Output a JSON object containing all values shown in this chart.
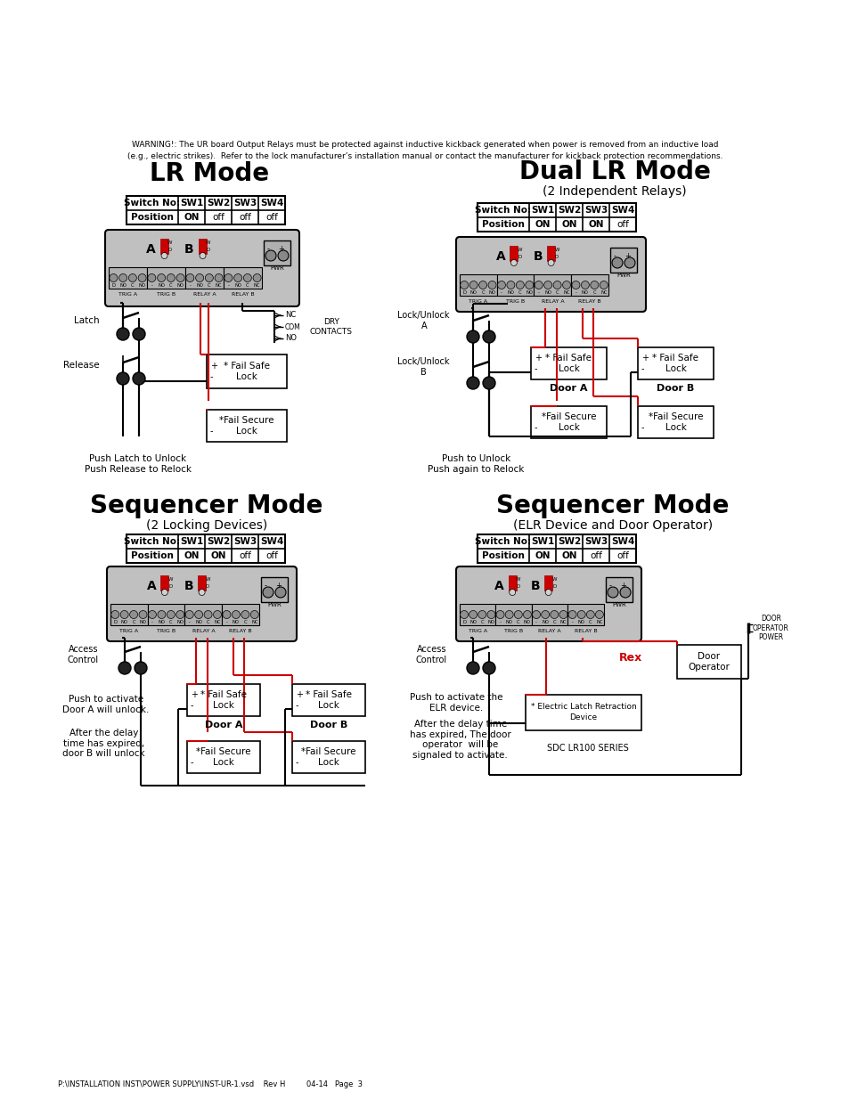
{
  "page_bg": "#ffffff",
  "warning_line1": "WARNING!: The UR board Output Relays must be protected against inductive kickback generated when power is removed from an inductive load",
  "warning_line2": "(e.g., electric strikes).  Refer to the lock manufacturer’s installation manual or contact the manufacturer for kickback protection recommendations.",
  "footer_text": "P:\\INSTALLATION INST\\POWER SUPPLY\\INST-UR-1.vsd    Rev H         04-14   Page  3",
  "lr_title": "LR Mode",
  "lr_sw_headers": [
    "Switch No:",
    "SW1",
    "SW2",
    "SW3",
    "SW4"
  ],
  "lr_sw_positions": [
    "Position",
    "ON",
    "off",
    "off",
    "off"
  ],
  "lr_latch": "Latch",
  "lr_release": "Release",
  "lr_dry": [
    "NC",
    "COM",
    "NO"
  ],
  "lr_dry_label": "DRY\nCONTACTS",
  "lr_fs_lock": "* Fail Safe\n    Lock",
  "lr_fsec_lock": "*Fail Secure\n    Lock",
  "lr_bottom": "Push Latch to Unlock\nPush Release to Relock",
  "dual_title": "Dual LR Mode",
  "dual_subtitle": "(2 Independent Relays)",
  "dual_sw_headers": [
    "Switch No:",
    "SW1",
    "SW2",
    "SW3",
    "SW4"
  ],
  "dual_sw_positions": [
    "Position",
    "ON",
    "ON",
    "ON",
    "off"
  ],
  "dual_lu_a": "Lock/Unlock\nA",
  "dual_lu_b": "Lock/Unlock\nB",
  "dual_door_a": "Door A",
  "dual_door_b": "Door B",
  "dual_fs_a": "* Fail Safe\n    Lock",
  "dual_fsec_a": "*Fail Secure\n    Lock",
  "dual_fs_b": "* Fail Safe\n    Lock",
  "dual_fsec_b": "*Fail Secure\n    Lock",
  "dual_bottom": "Push to Unlock\nPush again to Relock",
  "seq1_title": "Sequencer Mode",
  "seq1_subtitle": "(2 Locking Devices)",
  "seq1_sw_headers": [
    "Switch No:",
    "SW1",
    "SW2",
    "SW3",
    "SW4"
  ],
  "seq1_sw_positions": [
    "Position",
    "ON",
    "ON",
    "off",
    "off"
  ],
  "seq1_ac": "Access\nControl",
  "seq1_door_a": "Door A",
  "seq1_door_b": "Door B",
  "seq1_fs_a": "* Fail Safe\n    Lock",
  "seq1_fsec_a": "*Fail Secure\n    Lock",
  "seq1_fs_b": "* Fail Safe\n    Lock",
  "seq1_fsec_b": "*Fail Secure\n    Lock",
  "seq1_bottom1": "Push to activate\nDoor A will unlock.",
  "seq1_bottom2": "After the delay\ntime has expired,\ndoor B will unlock",
  "seq2_title": "Sequencer Mode",
  "seq2_subtitle": "(ELR Device and Door Operator)",
  "seq2_sw_headers": [
    "Switch No:",
    "SW1",
    "SW2",
    "SW3",
    "SW4"
  ],
  "seq2_sw_positions": [
    "Position",
    "ON",
    "ON",
    "off",
    "off"
  ],
  "seq2_ac": "Access\nControl",
  "seq2_rex": "Rex",
  "seq2_door_op": "Door\nOperator",
  "seq2_door_op_pwr": "DOOR\nOPERATOR\nPOWER",
  "seq2_elr": "* Electric Latch Retraction\n        Device",
  "seq2_sdc": "SDC LR100 SERIES",
  "seq2_bottom1": "Push to activate the\nELR device.",
  "seq2_bottom2": "After the delay time\nhas expired, The door\noperator  will be\nsignaled to activate.",
  "red": "#cc0000",
  "black": "#000000",
  "white": "#ffffff",
  "board_gray": "#c0c0c0",
  "term_gray": "#a8a8a8",
  "pwr_gray": "#b0b0b0"
}
